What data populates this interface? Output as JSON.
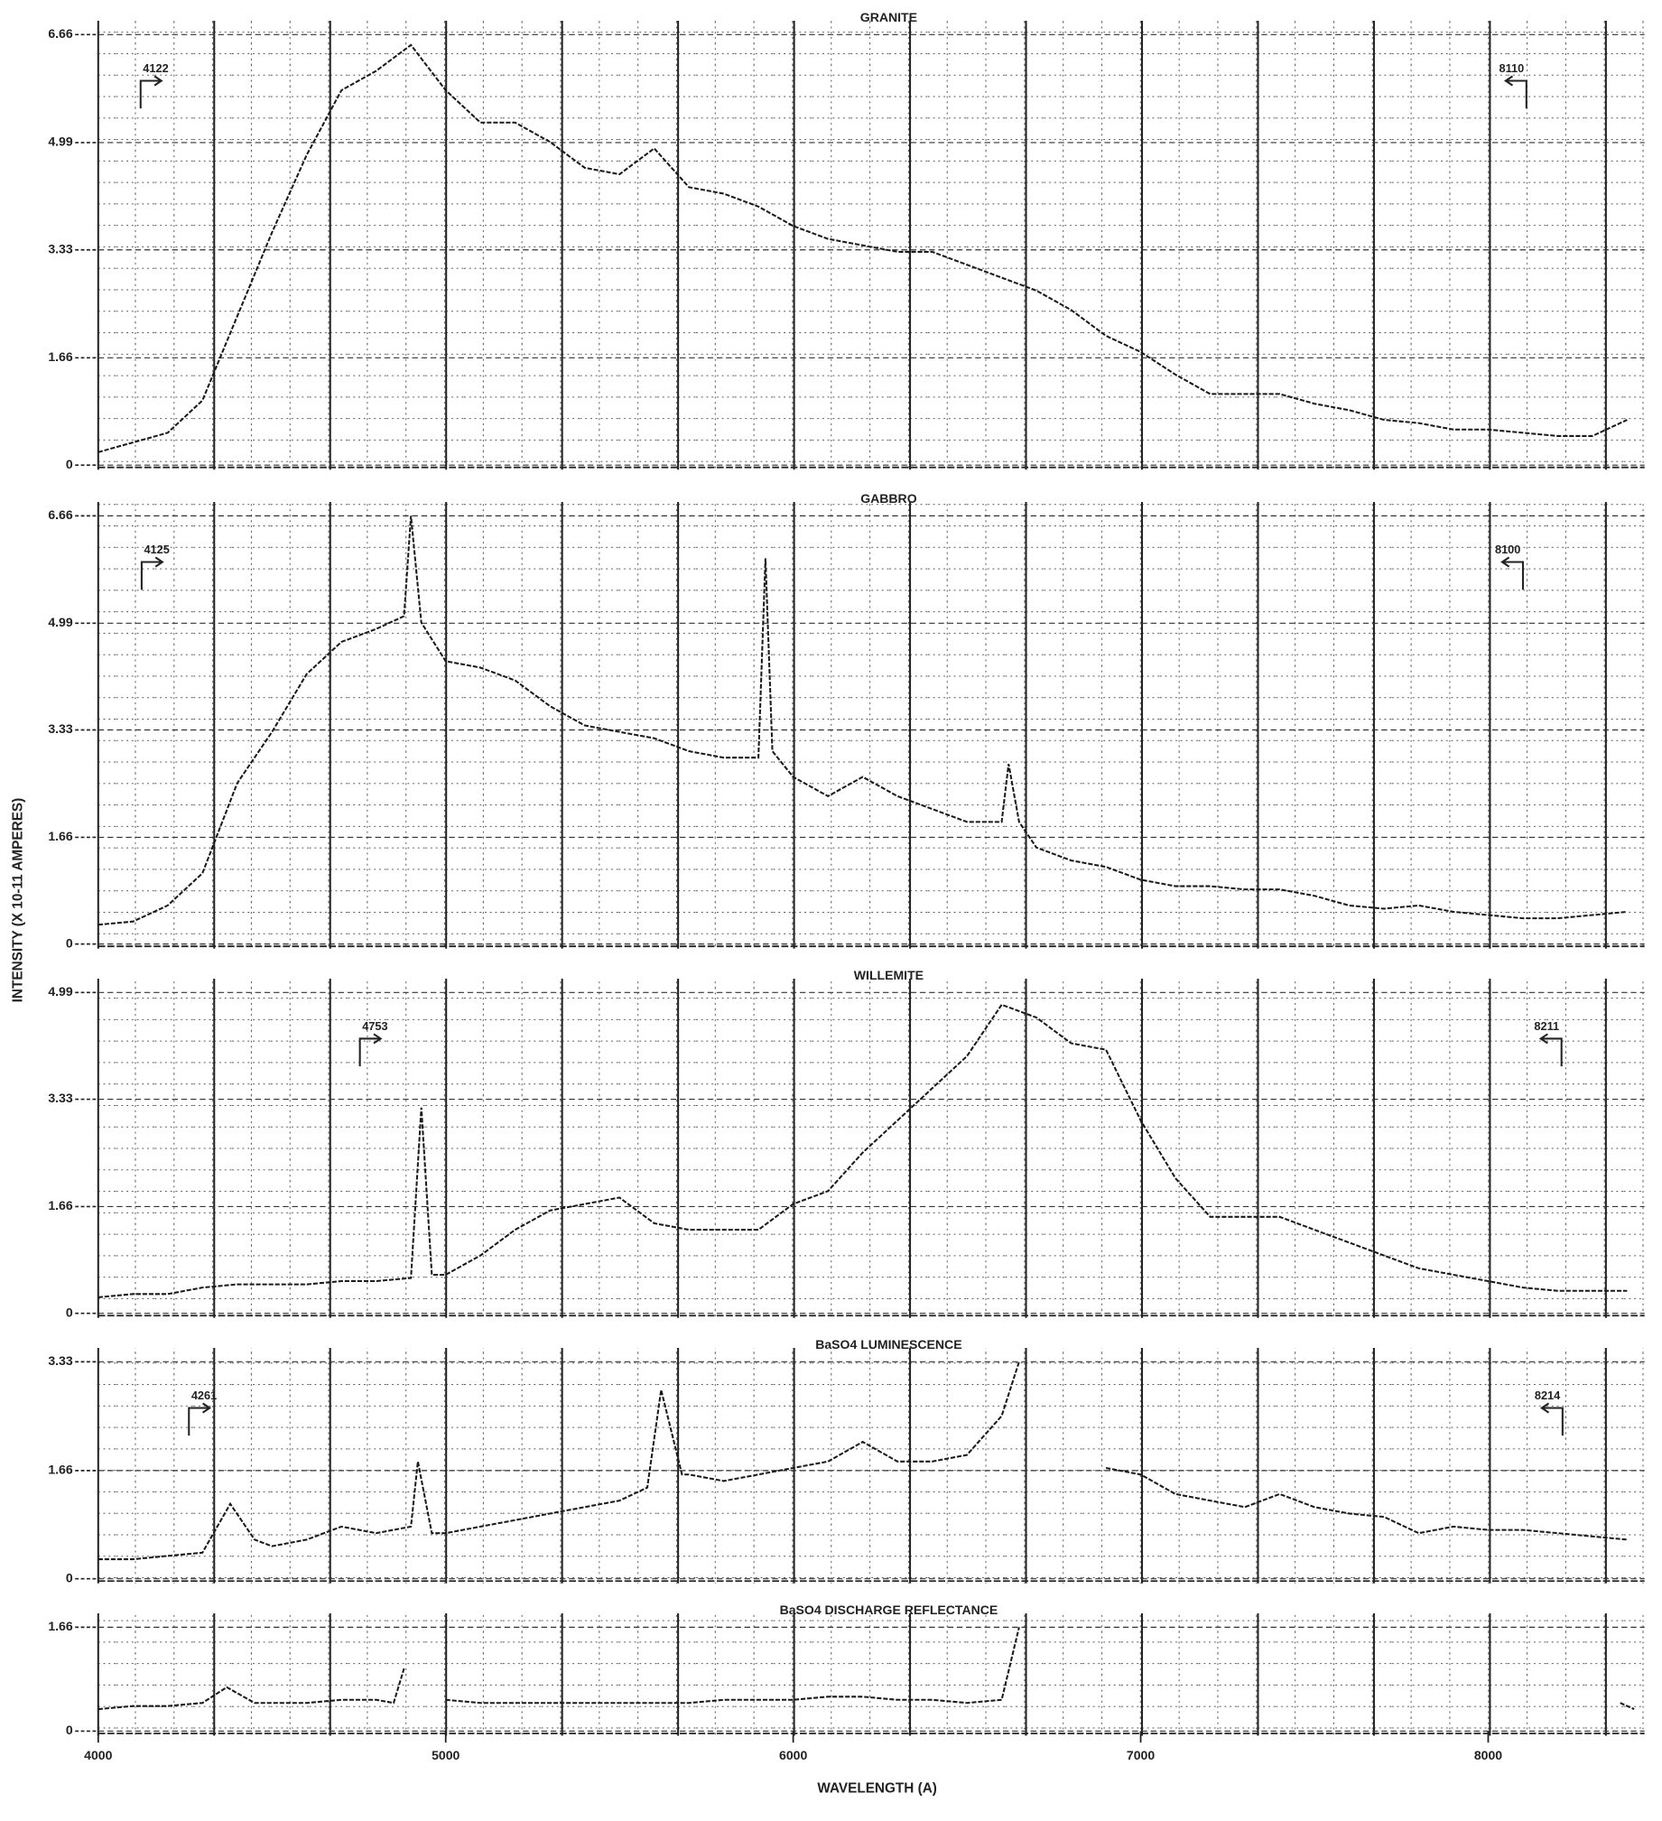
{
  "chart_data": [
    {
      "type": "line",
      "title": "GRANITE",
      "ylabel": "INTENSITY (X 10-11 AMPERES)",
      "color": "#1a1a1a",
      "xlim": [
        4000,
        8450
      ],
      "ylim": [
        0,
        6.66
      ],
      "yticks": [
        0,
        1.66,
        3.33,
        4.99,
        6.66
      ],
      "grid": true,
      "annotations": [
        4122,
        8110
      ],
      "x": [
        4000,
        4100,
        4200,
        4300,
        4400,
        4500,
        4600,
        4700,
        4800,
        4900,
        5000,
        5100,
        5200,
        5300,
        5400,
        5500,
        5600,
        5700,
        5800,
        5900,
        6000,
        6100,
        6200,
        6300,
        6400,
        6500,
        6600,
        6700,
        6800,
        6900,
        7000,
        7100,
        7200,
        7300,
        7400,
        7500,
        7600,
        7700,
        7800,
        7900,
        8000,
        8100,
        8200,
        8300,
        8400
      ],
      "values": [
        0.2,
        0.35,
        0.5,
        1.0,
        2.3,
        3.6,
        4.8,
        5.8,
        6.1,
        6.5,
        5.8,
        5.3,
        5.3,
        5.0,
        4.6,
        4.5,
        4.9,
        4.3,
        4.2,
        4.0,
        3.7,
        3.5,
        3.4,
        3.3,
        3.3,
        3.1,
        2.9,
        2.7,
        2.4,
        2.0,
        1.75,
        1.4,
        1.1,
        1.1,
        1.1,
        0.95,
        0.85,
        0.7,
        0.65,
        0.55,
        0.55,
        0.5,
        0.45,
        0.45,
        0.7
      ]
    },
    {
      "type": "line",
      "title": "GABBRO",
      "color": "#1a1a1a",
      "xlim": [
        4000,
        8450
      ],
      "ylim": [
        0,
        6.66
      ],
      "yticks": [
        0,
        1.66,
        3.33,
        4.99,
        6.66
      ],
      "grid": true,
      "annotations": [
        4125,
        8100
      ],
      "x": [
        4000,
        4100,
        4200,
        4300,
        4400,
        4500,
        4600,
        4700,
        4800,
        4880,
        4900,
        4930,
        5000,
        5100,
        5200,
        5300,
        5400,
        5500,
        5600,
        5700,
        5800,
        5900,
        5920,
        5940,
        6000,
        6100,
        6200,
        6300,
        6400,
        6500,
        6600,
        6620,
        6650,
        6700,
        6800,
        6900,
        7000,
        7100,
        7200,
        7300,
        7400,
        7500,
        7600,
        7700,
        7800,
        7900,
        8000,
        8100,
        8200,
        8300,
        8400
      ],
      "values": [
        0.3,
        0.35,
        0.6,
        1.1,
        2.5,
        3.3,
        4.2,
        4.7,
        4.9,
        5.1,
        6.66,
        5.0,
        4.4,
        4.3,
        4.1,
        3.7,
        3.4,
        3.3,
        3.2,
        3.0,
        2.9,
        2.9,
        6.0,
        3.0,
        2.6,
        2.3,
        2.6,
        2.3,
        2.1,
        1.9,
        1.9,
        2.8,
        1.9,
        1.5,
        1.3,
        1.2,
        1.0,
        0.9,
        0.9,
        0.85,
        0.85,
        0.75,
        0.6,
        0.55,
        0.6,
        0.5,
        0.45,
        0.4,
        0.4,
        0.45,
        0.5
      ]
    },
    {
      "type": "line",
      "title": "WILLEMITE",
      "color": "#1a1a1a",
      "xlim": [
        4000,
        8450
      ],
      "ylim": [
        0,
        4.99
      ],
      "yticks": [
        0,
        1.66,
        3.33,
        4.99
      ],
      "grid": true,
      "annotations": [
        4753,
        8211
      ],
      "x": [
        4000,
        4100,
        4200,
        4300,
        4400,
        4500,
        4600,
        4700,
        4800,
        4900,
        4930,
        4960,
        5000,
        5100,
        5200,
        5300,
        5400,
        5500,
        5600,
        5700,
        5800,
        5900,
        6000,
        6100,
        6200,
        6300,
        6400,
        6500,
        6600,
        6700,
        6800,
        6900,
        7000,
        7100,
        7200,
        7300,
        7400,
        7500,
        7600,
        7700,
        7800,
        7900,
        8000,
        8100,
        8200,
        8300,
        8400
      ],
      "values": [
        0.25,
        0.3,
        0.3,
        0.4,
        0.45,
        0.45,
        0.45,
        0.5,
        0.5,
        0.55,
        3.2,
        0.6,
        0.6,
        0.9,
        1.3,
        1.6,
        1.7,
        1.8,
        1.4,
        1.3,
        1.3,
        1.3,
        1.7,
        1.9,
        2.5,
        3.0,
        3.5,
        4.0,
        4.8,
        4.6,
        4.2,
        4.1,
        3.0,
        2.1,
        1.5,
        1.5,
        1.5,
        1.3,
        1.1,
        0.9,
        0.7,
        0.6,
        0.5,
        0.4,
        0.35,
        0.35,
        0.35
      ]
    },
    {
      "type": "line",
      "title": "BaSO4 LUMINESCENCE",
      "color": "#1a1a1a",
      "xlim": [
        4000,
        8450
      ],
      "ylim": [
        0,
        3.33
      ],
      "yticks": [
        0,
        1.66,
        3.33
      ],
      "grid": true,
      "annotations": [
        4261,
        8214
      ],
      "x": [
        4000,
        4100,
        4200,
        4300,
        4380,
        4450,
        4500,
        4600,
        4700,
        4800,
        4900,
        4920,
        4960,
        5000,
        5100,
        5200,
        5300,
        5400,
        5500,
        5580,
        5620,
        5680,
        5700,
        5800,
        5900,
        6000,
        6100,
        6200,
        6300,
        6400,
        6500,
        6600,
        6650,
        6750,
        6900,
        7000,
        7100,
        7200,
        7300,
        7400,
        7500,
        7600,
        7700,
        7800,
        7900,
        8000,
        8100,
        8200,
        8300,
        8400
      ],
      "values": [
        0.3,
        0.3,
        0.35,
        0.4,
        1.15,
        0.6,
        0.5,
        0.6,
        0.8,
        0.7,
        0.8,
        1.8,
        0.7,
        0.7,
        0.8,
        0.9,
        1.0,
        1.1,
        1.2,
        1.4,
        2.9,
        1.6,
        1.6,
        1.5,
        1.6,
        1.7,
        1.8,
        2.1,
        1.8,
        1.8,
        1.9,
        2.5,
        3.33,
        null,
        1.7,
        1.6,
        1.3,
        1.2,
        1.1,
        1.3,
        1.1,
        1.0,
        0.95,
        0.7,
        0.8,
        0.75,
        0.75,
        0.7,
        0.65,
        0.6
      ]
    },
    {
      "type": "line",
      "title": "BaSO4 DISCHARGE REFLECTANCE",
      "xlabel": "WAVELENGTH (A)",
      "color": "#1a1a1a",
      "xlim": [
        4000,
        8450
      ],
      "ylim": [
        0,
        1.66
      ],
      "yticks": [
        0,
        1.66
      ],
      "xticks": [
        4000,
        5000,
        6000,
        7000,
        8000
      ],
      "grid": true,
      "x": [
        4000,
        4100,
        4200,
        4300,
        4370,
        4450,
        4500,
        4600,
        4700,
        4800,
        4850,
        4880,
        4920,
        5000,
        5100,
        5200,
        5300,
        5400,
        5500,
        5600,
        5700,
        5800,
        5900,
        6000,
        6100,
        6200,
        6300,
        6400,
        6500,
        6600,
        6650,
        6700,
        8380,
        8420
      ],
      "values": [
        0.35,
        0.4,
        0.4,
        0.45,
        0.7,
        0.45,
        0.45,
        0.45,
        0.5,
        0.5,
        0.45,
        1.0,
        null,
        0.5,
        0.45,
        0.45,
        0.45,
        0.45,
        0.45,
        0.45,
        0.45,
        0.5,
        0.5,
        0.5,
        0.55,
        0.55,
        0.5,
        0.5,
        0.45,
        0.5,
        1.66,
        null,
        0.45,
        0.35
      ]
    }
  ]
}
